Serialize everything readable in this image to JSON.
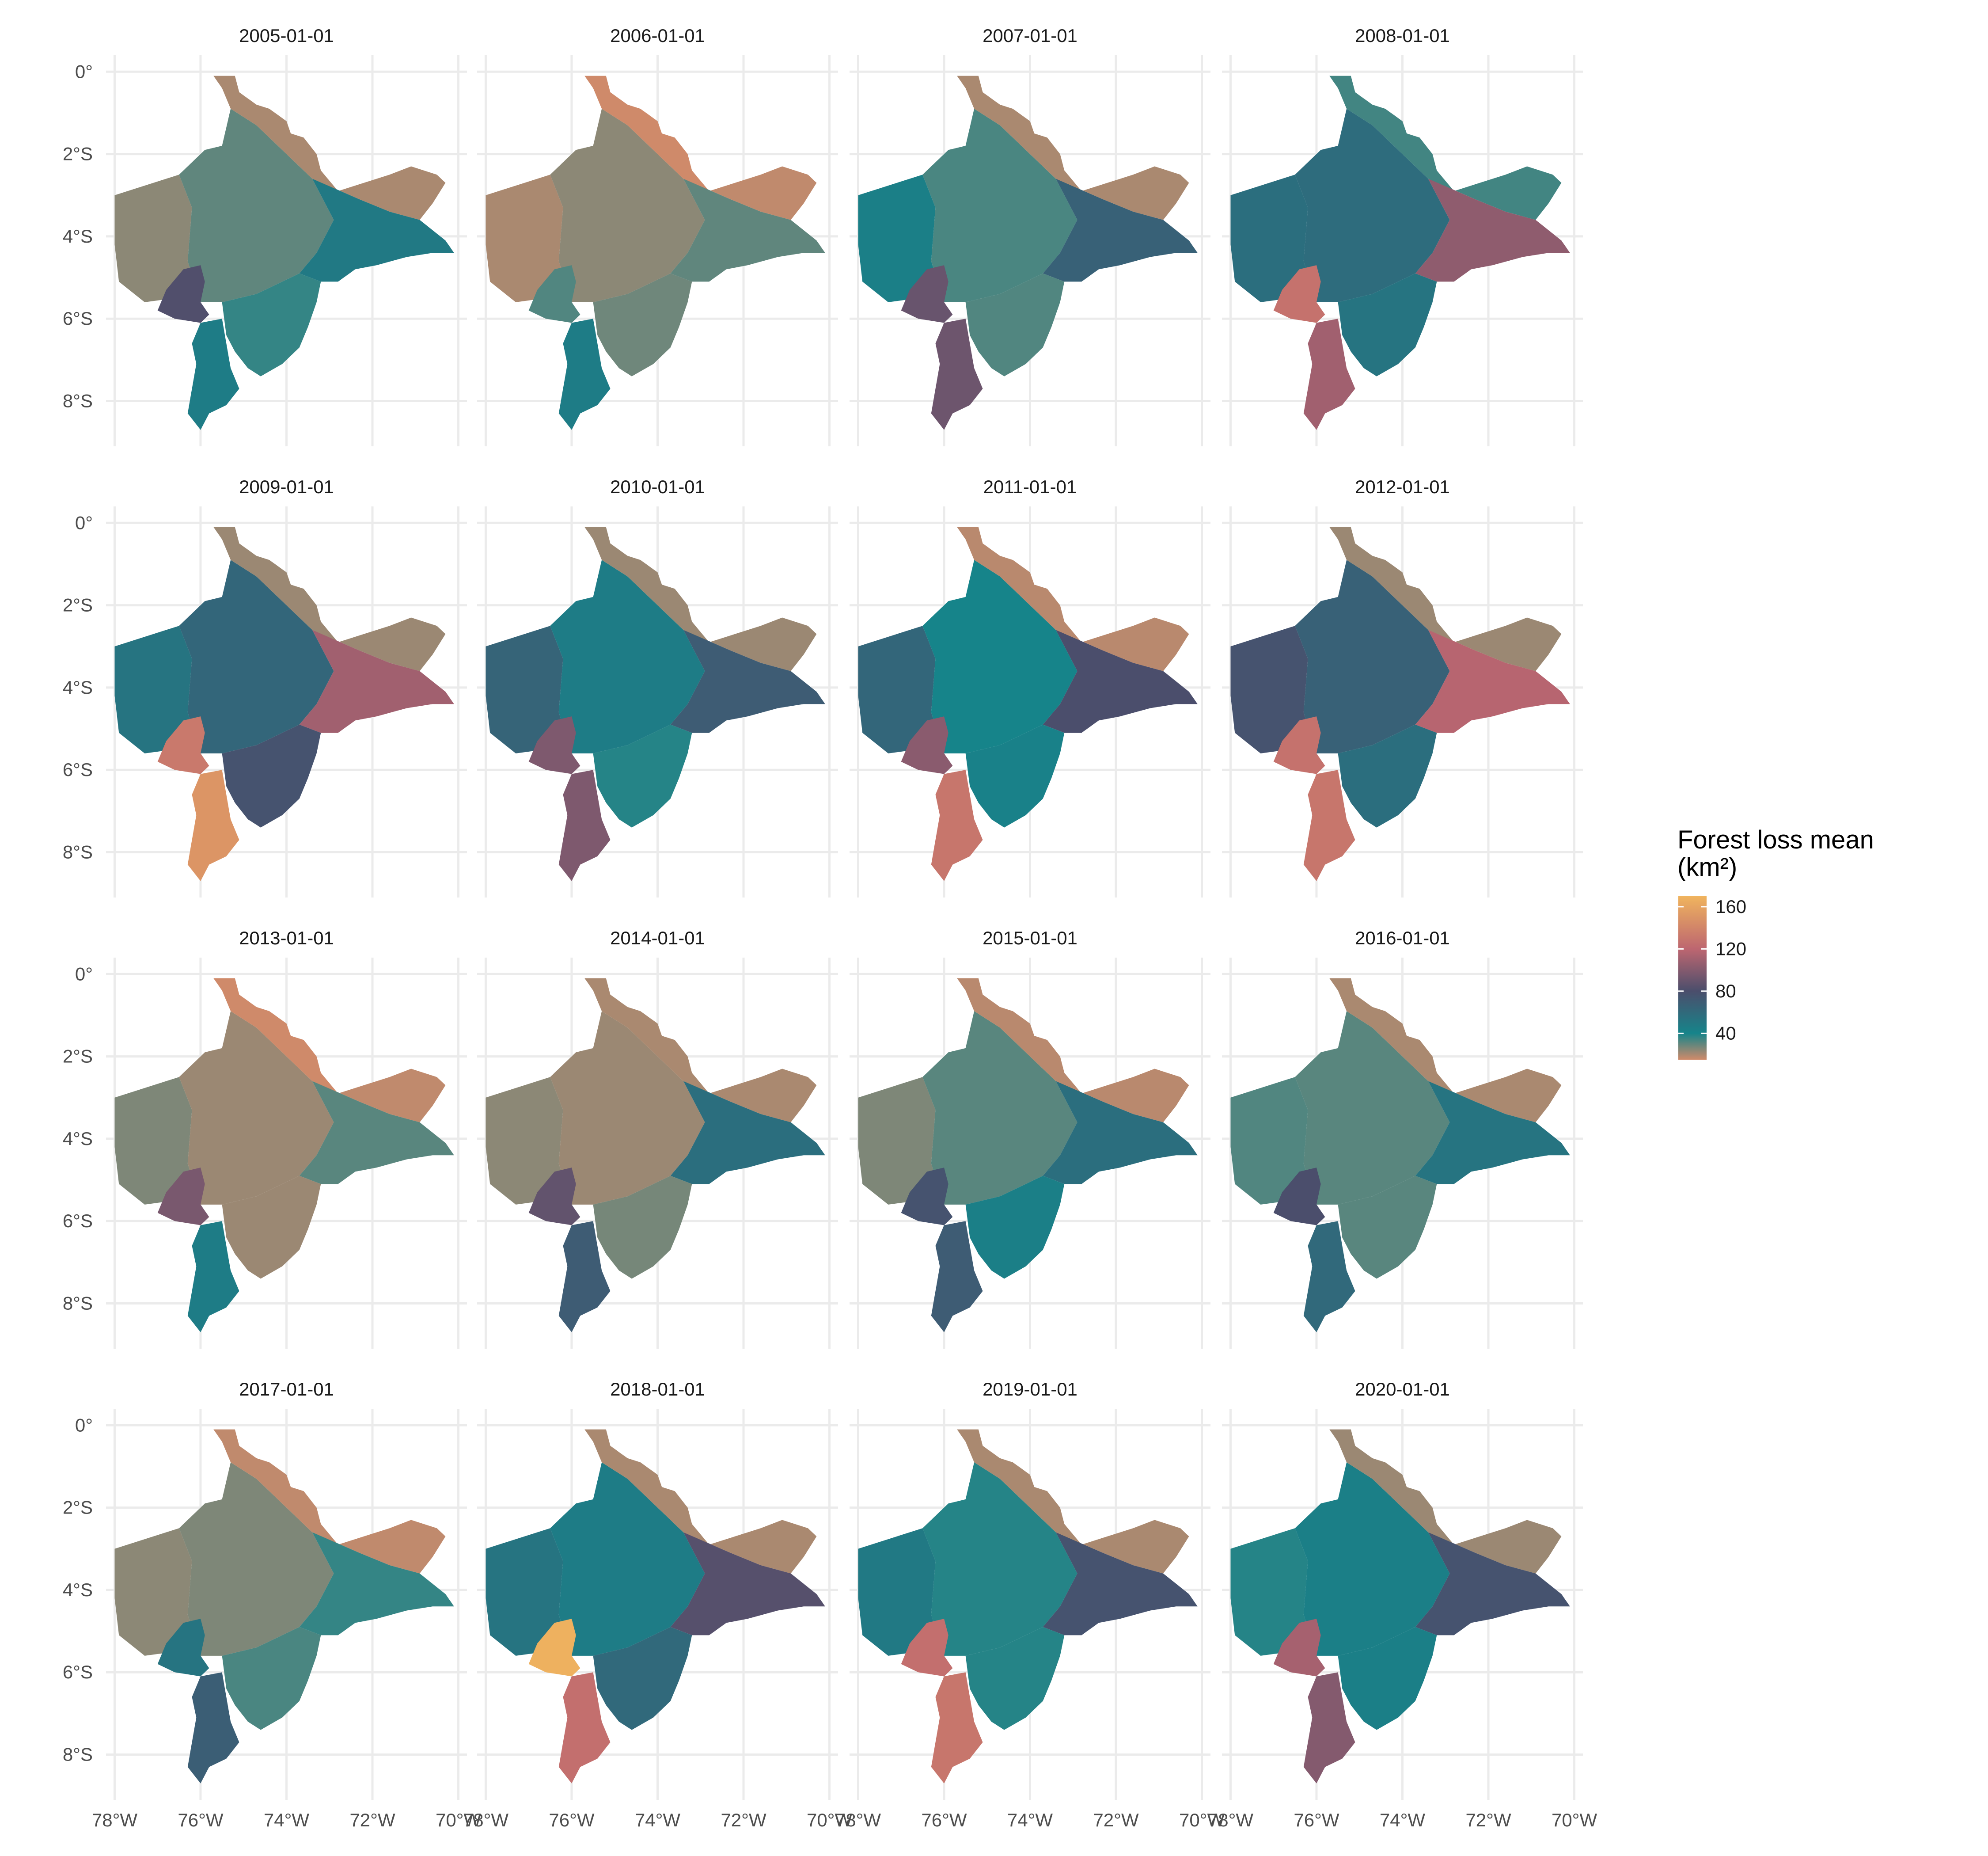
{
  "chart_data": {
    "type": "choropleth-map",
    "facet_titles": [
      "2005-01-01",
      "2006-01-01",
      "2007-01-01",
      "2008-01-01",
      "2009-01-01",
      "2010-01-01",
      "2011-01-01",
      "2012-01-01",
      "2013-01-01",
      "2014-01-01",
      "2015-01-01",
      "2016-01-01",
      "2017-01-01",
      "2018-01-01",
      "2019-01-01",
      "2020-01-01"
    ],
    "y_ticks": [
      {
        "value": 0,
        "label": "0°"
      },
      {
        "value": -2,
        "label": "2°S"
      },
      {
        "value": -4,
        "label": "4°S"
      },
      {
        "value": -6,
        "label": "6°S"
      },
      {
        "value": -8,
        "label": "8°S"
      }
    ],
    "x_ticks": [
      {
        "value": -78,
        "label": "78°W"
      },
      {
        "value": -76,
        "label": "76°W"
      },
      {
        "value": -74,
        "label": "74°W"
      },
      {
        "value": -72,
        "label": "72°W"
      },
      {
        "value": -70,
        "label": "70°W"
      }
    ],
    "xlim": [
      -78.2,
      -69.8
    ],
    "ylim": [
      -9.1,
      0.4
    ],
    "grid": true,
    "legend": {
      "title_line1": "Forest loss mean",
      "title_line2": "(km²)",
      "placement": "right",
      "ticks": [
        160,
        120,
        80,
        40
      ],
      "range": [
        15,
        170
      ],
      "color_stops": [
        {
          "value": 15,
          "color": "#cf8a6a"
        },
        {
          "value": 40,
          "color": "#16848a"
        },
        {
          "value": 80,
          "color": "#4b4e6c"
        },
        {
          "value": 120,
          "color": "#bd6670"
        },
        {
          "value": 170,
          "color": "#f0b45e"
        }
      ]
    },
    "region_names": [
      "north",
      "northeast",
      "west",
      "central",
      "east",
      "southwest",
      "southeast",
      "south"
    ],
    "years": [
      {
        "date": "2005-01-01",
        "values": {
          "north": 20,
          "northeast": 20,
          "west": 24,
          "central": 30,
          "east": 48,
          "southwest": 82,
          "southeast": 36,
          "south": 46
        }
      },
      {
        "date": "2006-01-01",
        "values": {
          "north": 15,
          "northeast": 17,
          "west": 20,
          "central": 24,
          "east": 30,
          "southwest": 32,
          "southeast": 28,
          "south": 46
        }
      },
      {
        "date": "2007-01-01",
        "values": {
          "north": 20,
          "northeast": 20,
          "west": 44,
          "central": 33,
          "east": 66,
          "southwest": 90,
          "southeast": 32,
          "south": 92
        }
      },
      {
        "date": "2008-01-01",
        "values": {
          "north": 34,
          "northeast": 34,
          "west": 56,
          "central": 58,
          "east": 104,
          "southwest": 128,
          "southeast": 52,
          "south": 110
        }
      },
      {
        "date": "2009-01-01",
        "values": {
          "north": 22,
          "northeast": 22,
          "west": 52,
          "central": 62,
          "east": 110,
          "southwest": 132,
          "southeast": 76,
          "south": 150
        }
      },
      {
        "date": "2010-01-01",
        "values": {
          "north": 22,
          "northeast": 22,
          "west": 64,
          "central": 46,
          "east": 70,
          "southwest": 98,
          "southeast": 38,
          "south": 98
        }
      },
      {
        "date": "2011-01-01",
        "values": {
          "north": 18,
          "northeast": 18,
          "west": 62,
          "central": 40,
          "east": 80,
          "southwest": 102,
          "southeast": 42,
          "south": 130
        }
      },
      {
        "date": "2012-01-01",
        "values": {
          "north": 22,
          "northeast": 22,
          "west": 76,
          "central": 66,
          "east": 118,
          "southwest": 128,
          "southeast": 56,
          "south": 130
        }
      },
      {
        "date": "2013-01-01",
        "values": {
          "north": 15,
          "northeast": 17,
          "west": 26,
          "central": 22,
          "east": 31,
          "southwest": 96,
          "southeast": 22,
          "south": 46
        }
      },
      {
        "date": "2014-01-01",
        "values": {
          "north": 20,
          "northeast": 20,
          "west": 24,
          "central": 22,
          "east": 56,
          "southwest": 88,
          "southeast": 27,
          "south": 70
        }
      },
      {
        "date": "2015-01-01",
        "values": {
          "north": 18,
          "northeast": 18,
          "west": 26,
          "central": 31,
          "east": 56,
          "southwest": 76,
          "southeast": 44,
          "south": 70
        }
      },
      {
        "date": "2016-01-01",
        "values": {
          "north": 20,
          "northeast": 20,
          "west": 32,
          "central": 31,
          "east": 52,
          "southwest": 80,
          "southeast": 31,
          "south": 60
        }
      },
      {
        "date": "2017-01-01",
        "values": {
          "north": 17,
          "northeast": 17,
          "west": 24,
          "central": 26,
          "east": 36,
          "southwest": 52,
          "southeast": 33,
          "south": 68
        }
      },
      {
        "date": "2018-01-01",
        "values": {
          "north": 20,
          "northeast": 20,
          "west": 52,
          "central": 46,
          "east": 84,
          "southwest": 168,
          "southeast": 60,
          "south": 126
        }
      },
      {
        "date": "2019-01-01",
        "values": {
          "north": 20,
          "northeast": 20,
          "west": 48,
          "central": 38,
          "east": 76,
          "southwest": 126,
          "southeast": 38,
          "south": 130
        }
      },
      {
        "date": "2020-01-01",
        "values": {
          "north": 22,
          "northeast": 22,
          "west": 38,
          "central": 44,
          "east": 76,
          "southwest": 112,
          "southeast": 44,
          "south": 100
        }
      }
    ]
  }
}
